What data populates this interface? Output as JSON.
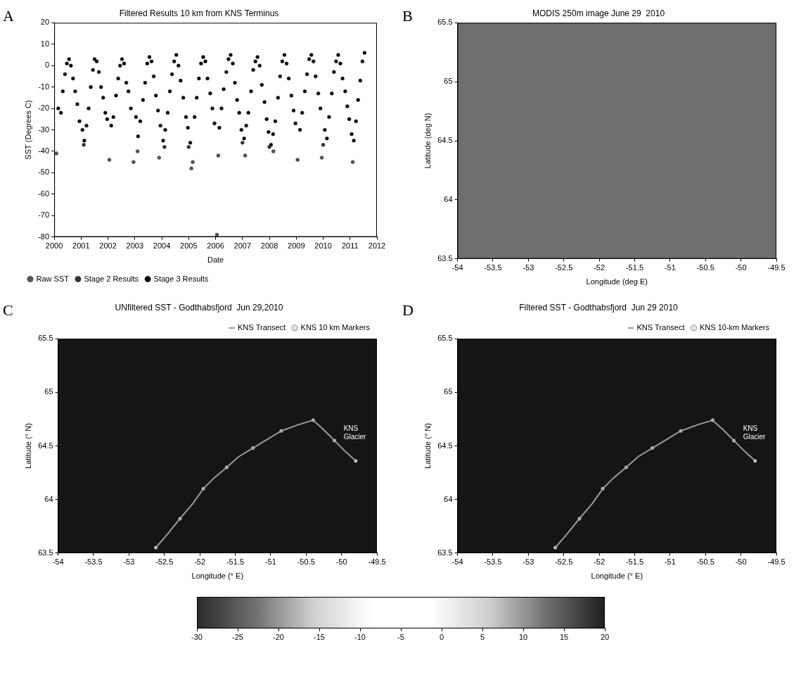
{
  "chart_data": [
    {
      "panel_letter": "A",
      "type": "scatter",
      "title": "Filtered Results 10 km from KNS Terminus",
      "x_label": "Date",
      "y_label": "SST (Degrees C)",
      "xlim": [
        2000,
        2012
      ],
      "xticks": [
        2000,
        2001,
        2002,
        2003,
        2004,
        2005,
        2006,
        2007,
        2008,
        2009,
        2010,
        2011,
        2012
      ],
      "ylim": [
        -80,
        20
      ],
      "yticks": [
        20,
        10,
        0,
        -10,
        -20,
        -30,
        -40,
        -50,
        -60,
        -70,
        -80
      ],
      "grid": false,
      "legend": "lower left",
      "series": [
        {
          "name": "Raw SST",
          "color": "#555555",
          "marker": "circle",
          "x": [
            2000.08,
            2002.05,
            2002.95,
            2003.1,
            2003.9,
            2005.1,
            2005.15,
            2006.05,
            2006.1,
            2007.1,
            2008.15,
            2009.05,
            2009.95,
            2011.1
          ],
          "values": [
            -41,
            -44,
            -45,
            -40,
            -43,
            -48,
            -45,
            -79,
            -42,
            -42,
            -40,
            -44,
            -43,
            -45
          ]
        },
        {
          "name": "Stage 2 Results",
          "color": "#333333",
          "marker": "circle",
          "x": [
            2001.1,
            2004.1,
            2005.0,
            2007.0,
            2008.0,
            2010.0
          ],
          "values": [
            -37,
            -38,
            -38,
            -36,
            -38,
            -37
          ]
        },
        {
          "name": "Stage 3 Results",
          "color": "#000000",
          "marker": "circle",
          "x": [
            2000.15,
            2000.25,
            2000.32,
            2000.4,
            2000.47,
            2000.55,
            2000.62,
            2000.7,
            2000.78,
            2000.86,
            2000.94,
            2001.05,
            2001.12,
            2001.2,
            2001.28,
            2001.36,
            2001.44,
            2001.5,
            2001.58,
            2001.66,
            2001.74,
            2001.82,
            2001.9,
            2001.97,
            2002.12,
            2002.2,
            2002.3,
            2002.38,
            2002.45,
            2002.52,
            2002.6,
            2002.68,
            2002.76,
            2002.85,
            2003.04,
            2003.12,
            2003.2,
            2003.3,
            2003.38,
            2003.46,
            2003.54,
            2003.62,
            2003.7,
            2003.78,
            2003.86,
            2003.95,
            2004.05,
            2004.13,
            2004.22,
            2004.3,
            2004.38,
            2004.46,
            2004.54,
            2004.62,
            2004.7,
            2004.8,
            2004.9,
            2004.97,
            2005.06,
            2005.22,
            2005.3,
            2005.38,
            2005.46,
            2005.54,
            2005.62,
            2005.7,
            2005.8,
            2005.88,
            2005.96,
            2006.14,
            2006.22,
            2006.3,
            2006.4,
            2006.48,
            2006.56,
            2006.64,
            2006.72,
            2006.8,
            2006.88,
            2006.96,
            2007.06,
            2007.14,
            2007.22,
            2007.32,
            2007.4,
            2007.48,
            2007.56,
            2007.64,
            2007.72,
            2007.82,
            2007.9,
            2007.97,
            2008.06,
            2008.14,
            2008.22,
            2008.32,
            2008.4,
            2008.48,
            2008.56,
            2008.64,
            2008.72,
            2008.82,
            2008.9,
            2008.97,
            2009.14,
            2009.22,
            2009.32,
            2009.4,
            2009.48,
            2009.56,
            2009.64,
            2009.72,
            2009.82,
            2009.9,
            2010.06,
            2010.14,
            2010.22,
            2010.32,
            2010.4,
            2010.48,
            2010.56,
            2010.64,
            2010.72,
            2010.82,
            2010.9,
            2010.97,
            2011.06,
            2011.14,
            2011.22,
            2011.3,
            2011.38,
            2011.46,
            2011.54
          ],
          "values": [
            -20,
            -22,
            -12,
            -4,
            1,
            3,
            0,
            -6,
            -12,
            -18,
            -26,
            -30,
            -35,
            -28,
            -20,
            -10,
            -2,
            3,
            2,
            -3,
            -10,
            -15,
            -22,
            -25,
            -28,
            -24,
            -14,
            -6,
            0,
            3,
            1,
            -8,
            -12,
            -20,
            -24,
            -33,
            -26,
            -16,
            -8,
            1,
            4,
            2,
            -5,
            -14,
            -21,
            -28,
            -35,
            -30,
            -22,
            -12,
            -4,
            2,
            5,
            0,
            -7,
            -15,
            -24,
            -29,
            -36,
            -24,
            -15,
            -6,
            1,
            4,
            2,
            -6,
            -13,
            -20,
            -27,
            -29,
            -20,
            -11,
            -3,
            3,
            5,
            1,
            -8,
            -16,
            -22,
            -30,
            -34,
            -28,
            -22,
            -12,
            -2,
            2,
            4,
            0,
            -9,
            -17,
            -25,
            -31,
            -37,
            -32,
            -26,
            -15,
            -5,
            2,
            5,
            1,
            -6,
            -14,
            -21,
            -27,
            -30,
            -22,
            -12,
            -4,
            3,
            5,
            2,
            -5,
            -13,
            -20,
            -30,
            -34,
            -24,
            -13,
            -3,
            2,
            5,
            1,
            -6,
            -12,
            -19,
            -25,
            -32,
            -35,
            -26,
            -16,
            -7,
            2,
            6
          ]
        }
      ]
    },
    {
      "panel_letter": "B",
      "type": "map",
      "title": "MODIS 250m image June 29  2010",
      "x_label": "Longitude (deg E)",
      "y_label": "Latitude (deg N)",
      "color": "#6e6e6e",
      "xlim": [
        -54,
        -49.5
      ],
      "xticks": [
        -54,
        -53.5,
        -53,
        -52.5,
        -52,
        -51.5,
        -51,
        -50.5,
        -50,
        -49.5
      ],
      "ylim": [
        63.5,
        65.5
      ],
      "yticks": [
        63.5,
        64,
        64.5,
        65,
        65.5
      ],
      "grid": false
    },
    {
      "panel_letter": "C",
      "type": "map",
      "title": "UNfiltered SST - Godthabsfjord  Jun 29,2010",
      "x_label": "Longitude (° E)",
      "y_label": "Latitude (° N)",
      "color": "#151515",
      "xlim": [
        -54,
        -49.5
      ],
      "xticks": [
        -54,
        -53.5,
        -53,
        -52.5,
        -52,
        -51.5,
        -51,
        -50.5,
        -50,
        -49.5
      ],
      "ylim": [
        63.5,
        65.5
      ],
      "yticks": [
        63.5,
        64,
        64.5,
        65,
        65.5
      ],
      "grid": false,
      "legend": "upper right",
      "annotations": [
        {
          "text": "KNS Glacier",
          "x": -49.97,
          "y": 64.66
        }
      ],
      "series": [
        {
          "name": "KNS Transect",
          "color": "#9a9a9a",
          "line_style": "solid",
          "marker": "none",
          "x": [
            -52.62,
            -52.45,
            -52.28,
            -52.1,
            -51.95,
            -51.8,
            -51.62,
            -51.45,
            -51.25,
            -51.05,
            -50.85,
            -50.6,
            -50.4,
            -50.25,
            -50.1,
            -49.95,
            -49.8
          ],
          "values": [
            63.55,
            63.68,
            63.82,
            63.96,
            64.1,
            64.2,
            64.3,
            64.4,
            64.48,
            64.56,
            64.64,
            64.7,
            64.74,
            64.65,
            64.55,
            64.45,
            64.36
          ]
        },
        {
          "name": "KNS 10 km Markers",
          "color": "#e0e0e0",
          "marker": "circle",
          "x": [
            -52.62,
            -52.28,
            -51.95,
            -51.62,
            -51.25,
            -50.85,
            -50.4,
            -50.1,
            -49.8
          ],
          "values": [
            63.55,
            63.82,
            64.1,
            64.3,
            64.48,
            64.64,
            64.74,
            64.55,
            64.36
          ]
        }
      ]
    },
    {
      "panel_letter": "D",
      "type": "map",
      "title": "Filtered SST - Godthabsfjord  Jun 29 2010",
      "x_label": "Longitude (° E)",
      "y_label": "Latitude (° N)",
      "color": "#151515",
      "xlim": [
        -54,
        -49.5
      ],
      "xticks": [
        -54,
        -53.5,
        -53,
        -52.5,
        -52,
        -51.5,
        -51,
        -50.5,
        -50,
        -49.5
      ],
      "ylim": [
        63.5,
        65.5
      ],
      "yticks": [
        63.5,
        64,
        64.5,
        65,
        65.5
      ],
      "grid": false,
      "legend": "upper right",
      "annotations": [
        {
          "text": "KNS Glacier",
          "x": -49.97,
          "y": 64.66
        }
      ],
      "series": [
        {
          "name": "KNS Transect",
          "color": "#9a9a9a",
          "line_style": "solid",
          "marker": "none",
          "x": [
            -52.62,
            -52.45,
            -52.28,
            -52.1,
            -51.95,
            -51.8,
            -51.62,
            -51.45,
            -51.25,
            -51.05,
            -50.85,
            -50.6,
            -50.4,
            -50.25,
            -50.1,
            -49.95,
            -49.8
          ],
          "values": [
            63.55,
            63.68,
            63.82,
            63.96,
            64.1,
            64.2,
            64.3,
            64.4,
            64.48,
            64.56,
            64.64,
            64.7,
            64.74,
            64.65,
            64.55,
            64.45,
            64.36
          ]
        },
        {
          "name": "KNS 10-km Markers",
          "color": "#e0e0e0",
          "marker": "circle",
          "x": [
            -52.62,
            -52.28,
            -51.95,
            -51.62,
            -51.25,
            -50.85,
            -50.4,
            -50.1,
            -49.8
          ],
          "values": [
            63.55,
            63.82,
            64.1,
            64.3,
            64.48,
            64.64,
            64.74,
            64.55,
            64.36
          ]
        }
      ]
    },
    {
      "type": "colorbar",
      "xlim": [
        -30,
        20
      ],
      "xticks": [
        -30,
        -25,
        -20,
        -15,
        -10,
        -5,
        0,
        5,
        10,
        15,
        20
      ],
      "colors": [
        "#2a2a2a",
        "#707070",
        "#d0d0d0",
        "#ffffff",
        "#ffffff",
        "#d0d0d0",
        "#707070",
        "#1e1e1e"
      ]
    }
  ]
}
